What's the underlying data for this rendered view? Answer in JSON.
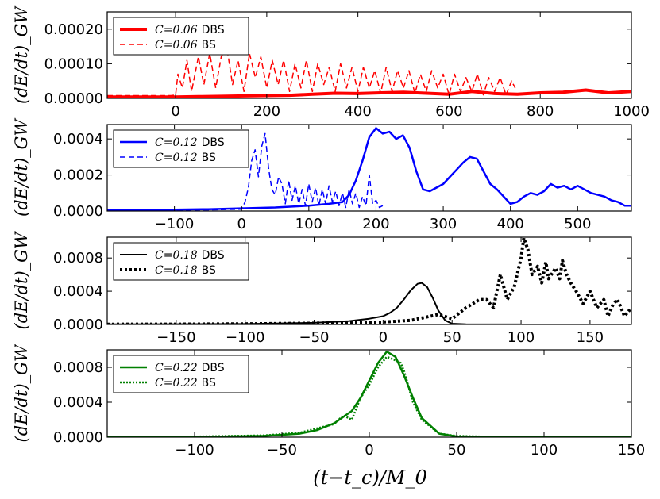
{
  "figure": {
    "xlabel": "(t−t_c)/M_0"
  },
  "chart_data": [
    {
      "type": "line",
      "ylabel": "(dE/dt)_GW",
      "xlim": [
        -150,
        1000
      ],
      "ylim": [
        0,
        0.00025
      ],
      "xticks": [
        0,
        200,
        400,
        600,
        800,
        1000
      ],
      "xtick_labels": [
        "0",
        "200",
        "400",
        "600",
        "800",
        "1000"
      ],
      "yticks": [
        0,
        0.0001,
        0.0002
      ],
      "ytick_labels": [
        "0.00000",
        "0.00010",
        "0.00020"
      ],
      "legend": {
        "position": "top-left"
      },
      "series": [
        {
          "name": "C=0.06 DBS",
          "legend_label": "DBS",
          "legend_math": "C=0.06",
          "color": "#ff0000",
          "style": "solid",
          "width": 4,
          "x": [
            -150,
            -100,
            -50,
            0,
            50,
            100,
            150,
            200,
            250,
            300,
            350,
            400,
            450,
            500,
            550,
            600,
            650,
            700,
            750,
            800,
            850,
            900,
            950,
            1000
          ],
          "y": [
            4e-06,
            4e-06,
            4e-06,
            4e-06,
            5e-06,
            6e-06,
            7e-06,
            8e-06,
            9e-06,
            1.2e-05,
            1.5e-05,
            1.4e-05,
            1.6e-05,
            1.8e-05,
            1.5e-05,
            1.2e-05,
            2e-05,
            1.4e-05,
            1.2e-05,
            1.6e-05,
            1.8e-05,
            2.4e-05,
            1.6e-05,
            2e-05
          ]
        },
        {
          "name": "C=0.06 BS",
          "legend_label": "BS",
          "legend_math": "C=0.06",
          "color": "#ff0000",
          "style": "dashed",
          "width": 1.5,
          "x": [
            -150,
            -10,
            0,
            5,
            15,
            25,
            35,
            50,
            62,
            75,
            88,
            100,
            112,
            125,
            137,
            150,
            162,
            175,
            187,
            200,
            212,
            225,
            237,
            250,
            262,
            275,
            287,
            300,
            312,
            325,
            337,
            350,
            362,
            375,
            387,
            400,
            412,
            425,
            437,
            450,
            462,
            475,
            487,
            500,
            512,
            525,
            537,
            550,
            562,
            575,
            587,
            600,
            612,
            625,
            637,
            650,
            662,
            675,
            687,
            700,
            712,
            725,
            737,
            745
          ],
          "y": [
            8e-06,
            8e-06,
            1e-05,
            7e-05,
            3e-05,
            0.00011,
            2e-05,
            0.00012,
            4e-05,
            0.00013,
            3e-05,
            0.00012,
            0.00015,
            4e-05,
            0.00011,
            2e-05,
            0.00013,
            6e-05,
            0.00012,
            3e-05,
            0.00011,
            4e-05,
            0.00011,
            2e-05,
            0.0001,
            3e-05,
            0.00011,
            2e-05,
            0.0001,
            4e-05,
            9e-05,
            2e-05,
            0.0001,
            3e-05,
            9e-05,
            2e-05,
            9e-05,
            3e-05,
            8e-05,
            1.5e-05,
            9e-05,
            2e-05,
            8e-05,
            3e-05,
            8e-05,
            1.5e-05,
            7e-05,
            2e-05,
            8e-05,
            3e-05,
            7e-05,
            1e-05,
            7e-05,
            2e-05,
            6e-05,
            2e-05,
            7e-05,
            1e-05,
            6e-05,
            2e-05,
            6e-05,
            1e-05,
            5e-05,
            3e-05
          ]
        }
      ]
    },
    {
      "type": "line",
      "ylabel": "(dE/dt)_GW",
      "xlim": [
        -200,
        580
      ],
      "ylim": [
        0,
        0.00048
      ],
      "xticks": [
        -100,
        0,
        100,
        200,
        300,
        400,
        500
      ],
      "xtick_labels": [
        "−100",
        "0",
        "100",
        "200",
        "300",
        "400",
        "500"
      ],
      "yticks": [
        0,
        0.0002,
        0.0004
      ],
      "ytick_labels": [
        "0.0000",
        "0.0002",
        "0.0004"
      ],
      "legend": {
        "position": "top-left"
      },
      "series": [
        {
          "name": "C=0.12 DBS",
          "legend_label": "DBS",
          "legend_math": "C=0.12",
          "color": "#0000ff",
          "style": "solid",
          "width": 2.5,
          "x": [
            -200,
            -150,
            -100,
            -50,
            0,
            50,
            100,
            130,
            150,
            160,
            170,
            180,
            190,
            200,
            210,
            220,
            230,
            240,
            250,
            260,
            270,
            280,
            290,
            300,
            310,
            320,
            330,
            340,
            350,
            360,
            370,
            380,
            390,
            400,
            410,
            420,
            430,
            440,
            450,
            460,
            470,
            480,
            490,
            500,
            510,
            520,
            530,
            540,
            550,
            560,
            570,
            580
          ],
          "y": [
            5e-06,
            6e-06,
            8e-06,
            1e-05,
            1.5e-05,
            2e-05,
            3e-05,
            4e-05,
            5e-05,
            9e-05,
            0.00017,
            0.00028,
            0.00041,
            0.00046,
            0.00043,
            0.00044,
            0.0004,
            0.00042,
            0.00035,
            0.00022,
            0.00012,
            0.00011,
            0.00013,
            0.00015,
            0.00019,
            0.00023,
            0.00027,
            0.0003,
            0.00029,
            0.00022,
            0.00015,
            0.00012,
            8e-05,
            4e-05,
            5e-05,
            8e-05,
            0.0001,
            9e-05,
            0.00011,
            0.00015,
            0.00013,
            0.00014,
            0.00012,
            0.00014,
            0.00012,
            0.0001,
            9e-05,
            8e-05,
            6e-05,
            5e-05,
            3e-05,
            3e-05
          ]
        },
        {
          "name": "C=0.12 BS",
          "legend_label": "BS",
          "legend_math": "C=0.12",
          "color": "#0000ff",
          "style": "dashed",
          "width": 1.5,
          "x": [
            -200,
            -100,
            -50,
            0,
            5,
            10,
            15,
            20,
            25,
            30,
            35,
            40,
            45,
            50,
            55,
            60,
            65,
            70,
            75,
            80,
            85,
            90,
            95,
            100,
            105,
            110,
            115,
            120,
            125,
            130,
            135,
            140,
            145,
            150,
            155,
            160,
            165,
            170,
            175,
            180,
            185,
            190,
            195,
            200,
            205,
            210
          ],
          "y": [
            5e-06,
            5e-06,
            6e-06,
            1e-05,
            5e-05,
            0.00013,
            0.00028,
            0.00034,
            0.00019,
            0.00036,
            0.00043,
            0.00024,
            0.00012,
            9e-05,
            0.00019,
            0.00015,
            4e-05,
            0.00017,
            6e-05,
            0.00014,
            4e-05,
            0.00012,
            3e-05,
            0.00015,
            5e-05,
            0.00013,
            3e-05,
            0.00012,
            4e-05,
            0.00014,
            5e-05,
            0.00011,
            3e-05,
            0.0001,
            2e-05,
            0.00012,
            4e-05,
            0.0001,
            2e-05,
            8e-05,
            3e-05,
            0.0002,
            4e-05,
            6e-05,
            2e-05,
            3e-05
          ]
        }
      ]
    },
    {
      "type": "line",
      "ylabel": "(dE/dt)_GW",
      "xlim": [
        -200,
        180
      ],
      "ylim": [
        0,
        0.00105
      ],
      "xticks": [
        -150,
        -100,
        -50,
        0,
        50,
        100,
        150
      ],
      "xtick_labels": [
        "−150",
        "−100",
        "−50",
        "0",
        "50",
        "100",
        "150"
      ],
      "yticks": [
        0,
        0.0004,
        0.0008
      ],
      "ytick_labels": [
        "0.0000",
        "0.0004",
        "0.0008"
      ],
      "legend": {
        "position": "top-left"
      },
      "series": [
        {
          "name": "C=0.18 DBS",
          "legend_label": "DBS",
          "legend_math": "C=0.18",
          "color": "#000000",
          "style": "solid",
          "width": 2,
          "x": [
            -200,
            -150,
            -100,
            -50,
            -25,
            -10,
            0,
            5,
            10,
            15,
            20,
            25,
            28,
            32,
            36,
            40,
            45,
            50,
            60,
            80,
            100
          ],
          "y": [
            3e-06,
            4e-06,
            6e-06,
            2e-05,
            4e-05,
            7e-05,
            0.0001,
            0.00014,
            0.0002,
            0.0003,
            0.00041,
            0.00049,
            0.0005,
            0.00045,
            0.00032,
            0.00017,
            5e-05,
            1e-05,
            3e-06,
            1e-06,
            1e-06
          ]
        },
        {
          "name": "C=0.18 BS",
          "legend_label": "BS",
          "legend_math": "C=0.18",
          "color": "#000000",
          "style": "dotted-thick",
          "width": 4,
          "x": [
            -200,
            -150,
            -100,
            -50,
            0,
            20,
            40,
            50,
            60,
            70,
            75,
            80,
            85,
            90,
            95,
            100,
            102,
            105,
            108,
            112,
            115,
            118,
            120,
            122,
            125,
            128,
            130,
            133,
            136,
            140,
            145,
            150,
            155,
            160,
            163,
            167,
            170,
            175,
            180
          ],
          "y": [
            3e-06,
            4e-06,
            8e-06,
            1.5e-05,
            3e-05,
            5e-05,
            0.00012,
            7e-05,
            0.0002,
            0.0003,
            0.0003,
            0.0002,
            0.0006,
            0.0003,
            0.00045,
            0.0008,
            0.00104,
            0.0009,
            0.0006,
            0.0007,
            0.0005,
            0.00075,
            0.00055,
            0.0006,
            0.00068,
            0.00055,
            0.00077,
            0.0006,
            0.0005,
            0.0004,
            0.00025,
            0.0004,
            0.0002,
            0.0003,
            0.0001,
            0.00025,
            0.0003,
            0.0001,
            0.0002
          ]
        }
      ]
    },
    {
      "type": "line",
      "ylabel": "(dE/dt)_GW",
      "xlim": [
        -150,
        150
      ],
      "ylim": [
        0,
        0.001
      ],
      "xticks": [
        -100,
        -50,
        0,
        50,
        100,
        150
      ],
      "xtick_labels": [
        "−100",
        "−50",
        "0",
        "50",
        "100",
        "150"
      ],
      "yticks": [
        0,
        0.0004,
        0.0008
      ],
      "ytick_labels": [
        "0.0000",
        "0.0004",
        "0.0008"
      ],
      "legend": {
        "position": "top-left"
      },
      "series": [
        {
          "name": "C=0.22 DBS",
          "legend_label": "DBS",
          "legend_math": "C=0.22",
          "color": "#008000",
          "style": "solid",
          "width": 2.5,
          "x": [
            -150,
            -100,
            -60,
            -40,
            -30,
            -20,
            -10,
            -5,
            0,
            5,
            10,
            15,
            20,
            25,
            30,
            40,
            50,
            70,
            100,
            150
          ],
          "y": [
            5e-07,
            3e-06,
            1.5e-05,
            4e-05,
            8e-05,
            0.00016,
            0.0003,
            0.00045,
            0.00065,
            0.00085,
            0.00098,
            0.00092,
            0.0007,
            0.00045,
            0.00022,
            4e-05,
            8e-06,
            1e-06,
            5e-07,
            5e-07
          ]
        },
        {
          "name": "C=0.22 BS",
          "legend_label": "BS",
          "legend_math": "C=0.22",
          "color": "#008000",
          "style": "dotted",
          "width": 2.5,
          "x": [
            -150,
            -100,
            -60,
            -40,
            -30,
            -20,
            -15,
            -10,
            -5,
            0,
            5,
            10,
            15,
            18,
            20,
            25,
            30,
            35,
            40,
            50,
            70,
            100,
            150
          ],
          "y": [
            1e-06,
            6e-06,
            2e-05,
            5e-05,
            0.0001,
            0.00015,
            0.00025,
            0.0002,
            0.00045,
            0.0006,
            0.0008,
            0.00092,
            0.00088,
            0.00085,
            0.00075,
            0.0004,
            0.0002,
            0.00012,
            4e-05,
            1.5e-05,
            4e-06,
            1e-06,
            1e-06
          ]
        }
      ]
    }
  ]
}
